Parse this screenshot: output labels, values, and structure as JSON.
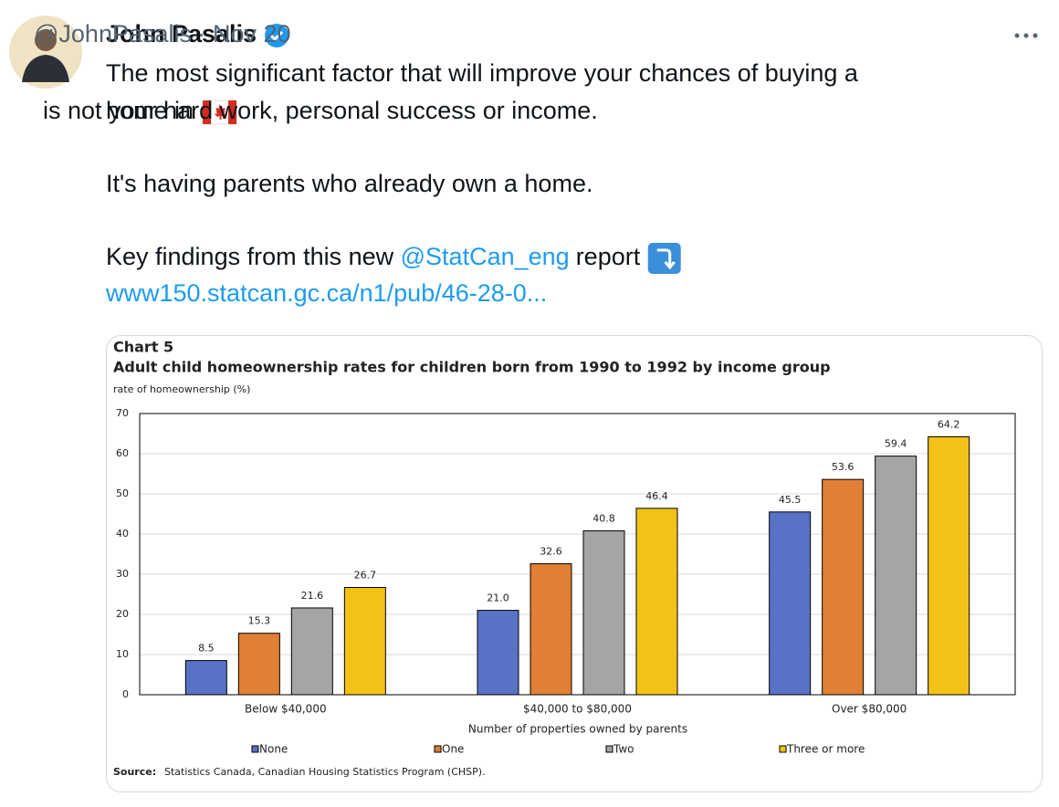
{
  "tweet": {
    "author": "John Pasalis",
    "handle": "@JohnPasalis",
    "separator": "·",
    "date": "Nov 20",
    "text": {
      "line1": "The most significant factor that will improve your chances of buying a",
      "line2a": "home in",
      "line2b": "is not your hard work, personal success or income.",
      "line3": "It's having parents who already own a home.",
      "line4a": "Key findings from this new",
      "mention": "@StatCan_eng",
      "line4b": "report",
      "link": "www150.statcan.gc.ca/n1/pub/46-28-0..."
    }
  },
  "chart_data": {
    "type": "bar",
    "chart_number": "Chart 5",
    "title": "Adult child homeownership rates for children born from 1990 to 1992 by income group",
    "y_label": "rate of homeownership (%)",
    "x_label": "Number of properties owned by parents",
    "categories": [
      "Below $40,000",
      "$40,000 to $80,000",
      "Over $80,000"
    ],
    "series": [
      {
        "name": "None",
        "color": "#5872c6",
        "values": [
          8.5,
          21.0,
          45.5
        ],
        "value_labels": [
          "8.5",
          "21.0",
          "45.5"
        ]
      },
      {
        "name": "One",
        "color": "#e07f35",
        "values": [
          15.3,
          32.6,
          53.6
        ],
        "value_labels": [
          "15.3",
          "32.6",
          "53.6"
        ]
      },
      {
        "name": "Two",
        "color": "#a5a5a5",
        "values": [
          21.6,
          40.8,
          59.4
        ],
        "value_labels": [
          "21.6",
          "40.8",
          "59.4"
        ]
      },
      {
        "name": "Three or more",
        "color": "#f4c217",
        "values": [
          26.7,
          46.4,
          64.2
        ],
        "value_labels": [
          "26.7",
          "46.4",
          "64.2"
        ]
      }
    ],
    "ylim": [
      0,
      70
    ],
    "yticks": [
      0,
      10,
      20,
      30,
      40,
      50,
      60,
      70
    ],
    "grid": true,
    "legend": "bottom",
    "source_label": "Source:",
    "source": "Statistics Canada, Canadian Housing Statistics Program (CHSP)."
  }
}
